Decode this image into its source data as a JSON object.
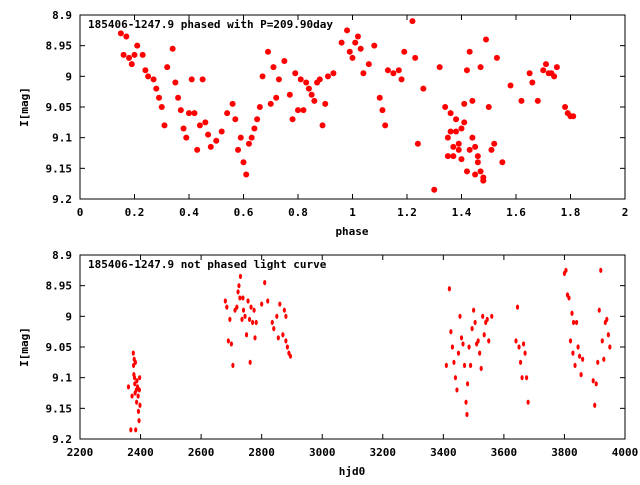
{
  "colors": {
    "points": "#ff0000",
    "axes": "#000000",
    "background": "#ffffff"
  },
  "chart_data": [
    {
      "type": "scatter",
      "title": "185406-1247.9 phased with P=209.90day",
      "xlabel": "phase",
      "ylabel": "I[mag]",
      "xlim": [
        0,
        2
      ],
      "ylim": [
        9.2,
        8.9
      ],
      "y_inverted": true,
      "grid": false,
      "marker": "filled circle",
      "xticks": [
        "0",
        "0.2",
        "0.4",
        "0.6",
        "0.8",
        "1",
        "1.2",
        "1.4",
        "1.6",
        "1.8",
        "2"
      ],
      "yticks": [
        "8.9",
        "8.95",
        "9",
        "9.05",
        "9.1",
        "9.15",
        "9.2"
      ],
      "points": [
        [
          0.15,
          8.93
        ],
        [
          0.16,
          8.965
        ],
        [
          0.17,
          8.935
        ],
        [
          0.18,
          8.97
        ],
        [
          0.19,
          8.98
        ],
        [
          0.2,
          8.965
        ],
        [
          0.21,
          8.95
        ],
        [
          0.23,
          8.965
        ],
        [
          0.24,
          8.99
        ],
        [
          0.25,
          9.0
        ],
        [
          0.27,
          9.005
        ],
        [
          0.28,
          9.02
        ],
        [
          0.29,
          9.035
        ],
        [
          0.3,
          9.05
        ],
        [
          0.31,
          9.08
        ],
        [
          0.32,
          8.985
        ],
        [
          0.34,
          8.955
        ],
        [
          0.35,
          9.01
        ],
        [
          0.36,
          9.035
        ],
        [
          0.37,
          9.055
        ],
        [
          0.38,
          9.085
        ],
        [
          0.39,
          9.1
        ],
        [
          0.4,
          9.06
        ],
        [
          0.41,
          9.005
        ],
        [
          0.42,
          9.06
        ],
        [
          0.43,
          9.12
        ],
        [
          0.44,
          9.08
        ],
        [
          0.45,
          9.005
        ],
        [
          0.46,
          9.075
        ],
        [
          0.47,
          9.095
        ],
        [
          0.48,
          9.115
        ],
        [
          0.5,
          9.105
        ],
        [
          0.52,
          9.09
        ],
        [
          0.54,
          9.06
        ],
        [
          0.56,
          9.045
        ],
        [
          0.57,
          9.07
        ],
        [
          0.58,
          9.12
        ],
        [
          0.59,
          9.1
        ],
        [
          0.6,
          9.14
        ],
        [
          0.61,
          9.16
        ],
        [
          0.62,
          9.11
        ],
        [
          0.63,
          9.1
        ],
        [
          0.64,
          9.085
        ],
        [
          0.65,
          9.07
        ],
        [
          0.66,
          9.05
        ],
        [
          0.67,
          9.0
        ],
        [
          0.69,
          8.96
        ],
        [
          0.7,
          9.045
        ],
        [
          0.71,
          8.985
        ],
        [
          0.72,
          9.035
        ],
        [
          0.73,
          9.005
        ],
        [
          0.75,
          8.975
        ],
        [
          0.77,
          9.03
        ],
        [
          0.78,
          9.07
        ],
        [
          0.79,
          8.995
        ],
        [
          0.8,
          9.055
        ],
        [
          0.81,
          9.005
        ],
        [
          0.82,
          9.055
        ],
        [
          0.83,
          9.01
        ],
        [
          0.84,
          9.02
        ],
        [
          0.85,
          9.03
        ],
        [
          0.86,
          9.04
        ],
        [
          0.87,
          9.01
        ],
        [
          0.88,
          9.005
        ],
        [
          0.89,
          9.08
        ],
        [
          0.9,
          9.045
        ],
        [
          0.91,
          9.0
        ],
        [
          0.93,
          8.995
        ],
        [
          0.96,
          8.945
        ],
        [
          0.98,
          8.925
        ],
        [
          0.99,
          8.96
        ],
        [
          1.0,
          8.97
        ],
        [
          1.01,
          8.945
        ],
        [
          1.02,
          8.935
        ],
        [
          1.03,
          8.955
        ],
        [
          1.04,
          8.995
        ],
        [
          1.06,
          8.98
        ],
        [
          1.08,
          8.95
        ],
        [
          1.1,
          9.035
        ],
        [
          1.11,
          9.055
        ],
        [
          1.12,
          9.08
        ],
        [
          1.13,
          8.99
        ],
        [
          1.15,
          8.995
        ],
        [
          1.17,
          8.99
        ],
        [
          1.18,
          9.005
        ],
        [
          1.19,
          8.96
        ],
        [
          1.22,
          8.91
        ],
        [
          1.23,
          8.97
        ],
        [
          1.24,
          9.11
        ],
        [
          1.26,
          9.02
        ],
        [
          1.3,
          9.185
        ],
        [
          1.32,
          8.985
        ],
        [
          1.34,
          9.05
        ],
        [
          1.35,
          9.1
        ],
        [
          1.35,
          9.13
        ],
        [
          1.36,
          9.06
        ],
        [
          1.36,
          9.09
        ],
        [
          1.37,
          9.115
        ],
        [
          1.37,
          9.13
        ],
        [
          1.38,
          9.07
        ],
        [
          1.38,
          9.09
        ],
        [
          1.39,
          9.11
        ],
        [
          1.39,
          9.12
        ],
        [
          1.4,
          9.085
        ],
        [
          1.4,
          9.135
        ],
        [
          1.41,
          9.045
        ],
        [
          1.41,
          9.075
        ],
        [
          1.42,
          9.155
        ],
        [
          1.42,
          8.99
        ],
        [
          1.43,
          9.12
        ],
        [
          1.43,
          8.96
        ],
        [
          1.44,
          9.04
        ],
        [
          1.44,
          9.1
        ],
        [
          1.45,
          9.115
        ],
        [
          1.45,
          9.16
        ],
        [
          1.46,
          9.14
        ],
        [
          1.46,
          9.13
        ],
        [
          1.47,
          9.155
        ],
        [
          1.47,
          8.985
        ],
        [
          1.48,
          9.17
        ],
        [
          1.48,
          9.165
        ],
        [
          1.49,
          8.94
        ],
        [
          1.5,
          9.05
        ],
        [
          1.51,
          9.12
        ],
        [
          1.52,
          9.11
        ],
        [
          1.53,
          8.97
        ],
        [
          1.55,
          9.14
        ],
        [
          1.58,
          9.015
        ],
        [
          1.62,
          9.04
        ],
        [
          1.65,
          8.995
        ],
        [
          1.66,
          9.01
        ],
        [
          1.68,
          9.04
        ],
        [
          1.7,
          8.99
        ],
        [
          1.71,
          8.98
        ],
        [
          1.72,
          8.995
        ],
        [
          1.73,
          8.995
        ],
        [
          1.74,
          9.0
        ],
        [
          1.75,
          8.985
        ],
        [
          1.78,
          9.05
        ],
        [
          1.79,
          9.06
        ],
        [
          1.8,
          9.065
        ],
        [
          1.81,
          9.065
        ]
      ]
    },
    {
      "type": "scatter",
      "title": "185406-1247.9 not phased light curve",
      "xlabel": "hjd0",
      "ylabel": "I[mag]",
      "xlim": [
        2200,
        4000
      ],
      "ylim": [
        9.2,
        8.9
      ],
      "y_inverted": true,
      "grid": false,
      "marker": "small diamond",
      "xticks": [
        "2200",
        "2400",
        "2600",
        "2800",
        "3000",
        "3200",
        "3400",
        "3600",
        "3800",
        "4000"
      ],
      "yticks": [
        "8.9",
        "8.95",
        "9",
        "9.05",
        "9.1",
        "9.15",
        "9.2"
      ],
      "points": [
        [
          2360,
          9.115
        ],
        [
          2368,
          9.185
        ],
        [
          2372,
          9.13
        ],
        [
          2376,
          9.06
        ],
        [
          2377,
          9.08
        ],
        [
          2378,
          9.095
        ],
        [
          2379,
          9.07
        ],
        [
          2380,
          9.1
        ],
        [
          2381,
          9.11
        ],
        [
          2382,
          9.125
        ],
        [
          2383,
          9.075
        ],
        [
          2384,
          9.185
        ],
        [
          2386,
          9.12
        ],
        [
          2387,
          9.14
        ],
        [
          2388,
          9.105
        ],
        [
          2390,
          9.115
        ],
        [
          2392,
          9.13
        ],
        [
          2393,
          9.155
        ],
        [
          2395,
          9.17
        ],
        [
          2396,
          9.12
        ],
        [
          2397,
          9.1
        ],
        [
          2398,
          9.145
        ],
        [
          2680,
          8.975
        ],
        [
          2685,
          8.985
        ],
        [
          2690,
          9.04
        ],
        [
          2695,
          9.005
        ],
        [
          2700,
          9.045
        ],
        [
          2705,
          9.08
        ],
        [
          2712,
          8.99
        ],
        [
          2718,
          8.985
        ],
        [
          2722,
          8.96
        ],
        [
          2725,
          8.95
        ],
        [
          2728,
          8.97
        ],
        [
          2730,
          8.935
        ],
        [
          2735,
          9.005
        ],
        [
          2738,
          8.97
        ],
        [
          2740,
          8.99
        ],
        [
          2745,
          9.0
        ],
        [
          2750,
          9.03
        ],
        [
          2755,
          8.975
        ],
        [
          2760,
          9.005
        ],
        [
          2762,
          9.075
        ],
        [
          2765,
          8.985
        ],
        [
          2770,
          9.01
        ],
        [
          2775,
          8.99
        ],
        [
          2778,
          9.035
        ],
        [
          2782,
          9.01
        ],
        [
          2800,
          8.98
        ],
        [
          2810,
          8.945
        ],
        [
          2820,
          8.975
        ],
        [
          2835,
          9.01
        ],
        [
          2840,
          9.02
        ],
        [
          2850,
          9.0
        ],
        [
          2855,
          9.035
        ],
        [
          2860,
          8.98
        ],
        [
          2870,
          9.03
        ],
        [
          2875,
          8.99
        ],
        [
          2880,
          9.0
        ],
        [
          2885,
          9.05
        ],
        [
          2890,
          9.06
        ],
        [
          2895,
          9.065
        ],
        [
          2880,
          9.04
        ],
        [
          3410,
          9.08
        ],
        [
          3420,
          8.955
        ],
        [
          3425,
          9.025
        ],
        [
          3430,
          9.05
        ],
        [
          3435,
          9.075
        ],
        [
          3440,
          9.1
        ],
        [
          3445,
          9.12
        ],
        [
          3450,
          9.06
        ],
        [
          3455,
          9.0
        ],
        [
          3460,
          9.035
        ],
        [
          3465,
          9.045
        ],
        [
          3470,
          9.08
        ],
        [
          3475,
          9.14
        ],
        [
          3478,
          9.16
        ],
        [
          3480,
          9.11
        ],
        [
          3485,
          9.05
        ],
        [
          3490,
          9.08
        ],
        [
          3495,
          9.02
        ],
        [
          3500,
          8.99
        ],
        [
          3505,
          9.01
        ],
        [
          3510,
          9.045
        ],
        [
          3515,
          9.04
        ],
        [
          3520,
          9.06
        ],
        [
          3525,
          9.085
        ],
        [
          3530,
          9.0
        ],
        [
          3535,
          9.03
        ],
        [
          3540,
          9.01
        ],
        [
          3545,
          9.005
        ],
        [
          3550,
          9.04
        ],
        [
          3560,
          9.0
        ],
        [
          3640,
          9.04
        ],
        [
          3645,
          8.985
        ],
        [
          3650,
          9.05
        ],
        [
          3655,
          9.075
        ],
        [
          3660,
          9.1
        ],
        [
          3665,
          9.045
        ],
        [
          3670,
          9.06
        ],
        [
          3675,
          9.1
        ],
        [
          3680,
          9.14
        ],
        [
          3800,
          8.93
        ],
        [
          3805,
          8.925
        ],
        [
          3810,
          8.965
        ],
        [
          3815,
          8.97
        ],
        [
          3820,
          9.04
        ],
        [
          3825,
          8.995
        ],
        [
          3828,
          9.06
        ],
        [
          3830,
          9.01
        ],
        [
          3835,
          9.08
        ],
        [
          3840,
          9.01
        ],
        [
          3845,
          9.05
        ],
        [
          3850,
          9.065
        ],
        [
          3855,
          9.095
        ],
        [
          3860,
          9.07
        ],
        [
          3895,
          9.105
        ],
        [
          3900,
          9.145
        ],
        [
          3905,
          9.11
        ],
        [
          3910,
          9.075
        ],
        [
          3915,
          8.99
        ],
        [
          3920,
          8.925
        ],
        [
          3925,
          9.04
        ],
        [
          3930,
          9.07
        ],
        [
          3935,
          9.01
        ],
        [
          3940,
          9.005
        ],
        [
          3945,
          9.03
        ],
        [
          3950,
          9.05
        ]
      ]
    }
  ]
}
